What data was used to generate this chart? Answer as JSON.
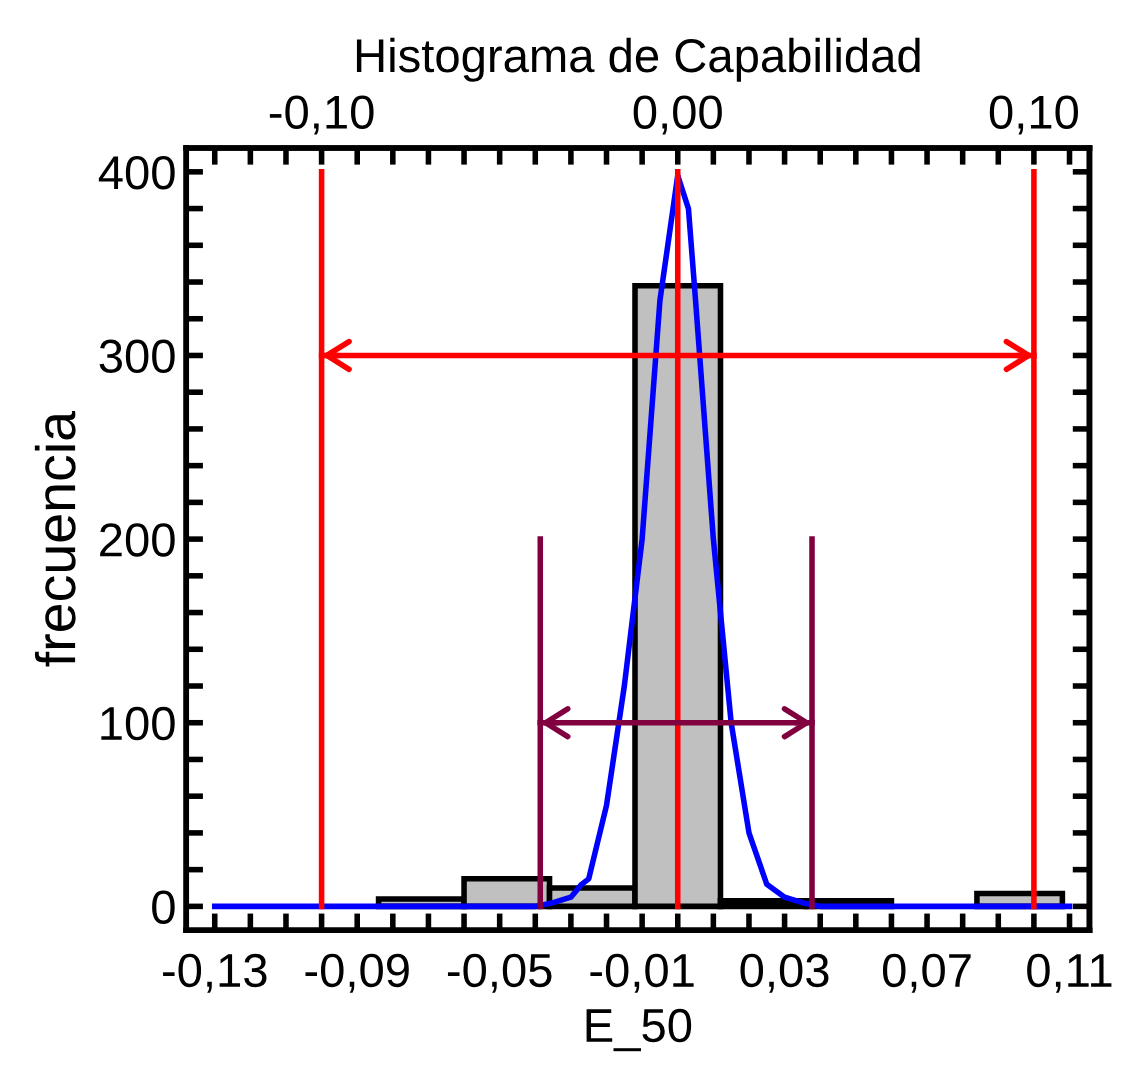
{
  "chart_data": {
    "type": "histogram",
    "title": "Histograma de Capabilidad",
    "xlabel": "E_50",
    "ylabel": "frecuencia",
    "bins": [
      -0.084,
      -0.06,
      -0.036,
      -0.012,
      0.012,
      0.036,
      0.06,
      0.084,
      0.108
    ],
    "values": [
      4,
      15,
      10,
      338,
      3,
      3,
      0,
      7
    ],
    "color": "#c0c0c0",
    "series": [
      {
        "type": "line",
        "color": "#0000ff",
        "x": [
          -0.13,
          -0.04,
          -0.035,
          -0.03,
          -0.027,
          -0.025,
          -0.02,
          -0.015,
          -0.01,
          -0.005,
          0.0,
          0.003,
          0.005,
          0.01,
          0.015,
          0.02,
          0.025,
          0.03,
          0.035,
          0.04,
          0.11
        ],
        "values": [
          0,
          0,
          2,
          5,
          12,
          15,
          55,
          120,
          200,
          330,
          398,
          380,
          330,
          200,
          100,
          40,
          12,
          5,
          2,
          0,
          0
        ]
      },
      {
        "type": "line",
        "color": "#ff0000",
        "x": [
          -0.1,
          -0.1
        ],
        "values": [
          0,
          400
        ]
      },
      {
        "type": "line",
        "color": "#ff0000",
        "x": [
          0.0,
          0.0
        ],
        "values": [
          0,
          400
        ]
      },
      {
        "type": "line",
        "color": "#ff0000",
        "x": [
          0.1,
          0.1
        ],
        "values": [
          0,
          400
        ]
      },
      {
        "type": "line",
        "color": "#ff0000",
        "x": [
          -0.1,
          0.1
        ],
        "values": [
          300,
          300
        ]
      },
      {
        "type": "line",
        "color": "#800040",
        "x": [
          -0.0386,
          -0.0386
        ],
        "values": [
          0,
          200
        ]
      },
      {
        "type": "line",
        "color": "#800040",
        "x": [
          0.0377,
          0.0377
        ],
        "values": [
          0,
          200
        ]
      },
      {
        "type": "line",
        "color": "#800040",
        "x": [
          -0.0386,
          0.0377
        ],
        "values": [
          100,
          100
        ]
      }
    ],
    "xlim": [
      -0.138,
      0.1156
    ],
    "ylim": [
      -13,
      413
    ],
    "x2lim": [
      -0.138,
      0.1156
    ],
    "xticks": [
      {
        "value": -0.13,
        "label": "-0,13"
      },
      {
        "value": -0.12,
        "label": null
      },
      {
        "value": -0.11,
        "label": null
      },
      {
        "value": -0.1,
        "label": null
      },
      {
        "value": -0.09,
        "label": "-0,09"
      },
      {
        "value": -0.08,
        "label": null
      },
      {
        "value": -0.07,
        "label": null
      },
      {
        "value": -0.06,
        "label": null
      },
      {
        "value": -0.05,
        "label": "-0,05"
      },
      {
        "value": -0.04,
        "label": null
      },
      {
        "value": -0.03,
        "label": null
      },
      {
        "value": -0.02,
        "label": null
      },
      {
        "value": -0.01,
        "label": "-0,01"
      },
      {
        "value": 0.0,
        "label": null
      },
      {
        "value": 0.01,
        "label": null
      },
      {
        "value": 0.02,
        "label": null
      },
      {
        "value": 0.03,
        "label": "0,03"
      },
      {
        "value": 0.04,
        "label": null
      },
      {
        "value": 0.05,
        "label": null
      },
      {
        "value": 0.06,
        "label": null
      },
      {
        "value": 0.07,
        "label": "0,07"
      },
      {
        "value": 0.08,
        "label": null
      },
      {
        "value": 0.09,
        "label": null
      },
      {
        "value": 0.1,
        "label": null
      },
      {
        "value": 0.11,
        "label": "0,11"
      }
    ],
    "x2ticks": [
      {
        "value": -0.13,
        "label": null
      },
      {
        "value": -0.12,
        "label": null
      },
      {
        "value": -0.11,
        "label": null
      },
      {
        "value": -0.1,
        "label": "-0,10"
      },
      {
        "value": -0.09,
        "label": null
      },
      {
        "value": -0.08,
        "label": null
      },
      {
        "value": -0.07,
        "label": null
      },
      {
        "value": -0.06,
        "label": null
      },
      {
        "value": -0.05,
        "label": null
      },
      {
        "value": -0.04,
        "label": null
      },
      {
        "value": -0.03,
        "label": null
      },
      {
        "value": -0.02,
        "label": null
      },
      {
        "value": -0.01,
        "label": null
      },
      {
        "value": 0.0,
        "label": "0,00"
      },
      {
        "value": 0.01,
        "label": null
      },
      {
        "value": 0.02,
        "label": null
      },
      {
        "value": 0.03,
        "label": null
      },
      {
        "value": 0.04,
        "label": null
      },
      {
        "value": 0.05,
        "label": null
      },
      {
        "value": 0.06,
        "label": null
      },
      {
        "value": 0.07,
        "label": null
      },
      {
        "value": 0.08,
        "label": null
      },
      {
        "value": 0.09,
        "label": null
      },
      {
        "value": 0.1,
        "label": "0,10"
      },
      {
        "value": 0.11,
        "label": null
      }
    ],
    "yticks": [
      0,
      {
        "value": 20,
        "label": null
      },
      {
        "value": 40,
        "label": null
      },
      {
        "value": 60,
        "label": null
      },
      {
        "value": 80,
        "label": null
      },
      100,
      {
        "value": 120,
        "label": null
      },
      {
        "value": 140,
        "label": null
      },
      {
        "value": 160,
        "label": null
      },
      {
        "value": 180,
        "label": null
      },
      200,
      {
        "value": 220,
        "label": null
      },
      {
        "value": 240,
        "label": null
      },
      {
        "value": 260,
        "label": null
      },
      {
        "value": 280,
        "label": null
      },
      300,
      {
        "value": 320,
        "label": null
      },
      {
        "value": 340,
        "label": null
      },
      {
        "value": 360,
        "label": null
      },
      {
        "value": 380,
        "label": null
      },
      400
    ],
    "grid": false,
    "legend": false
  }
}
